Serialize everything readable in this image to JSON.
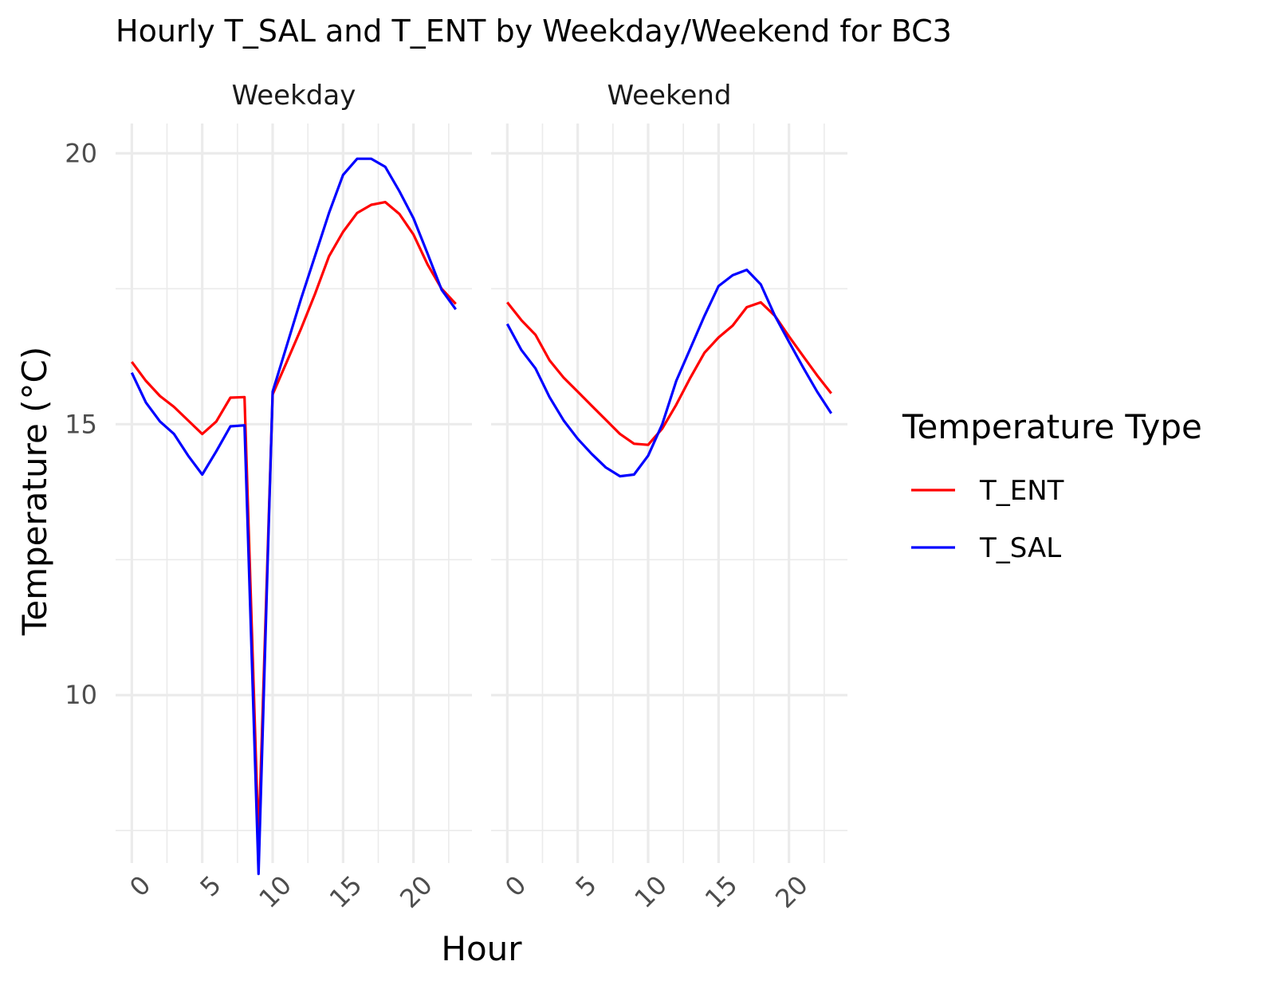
{
  "chart_data": {
    "type": "line",
    "title": "Hourly T_SAL and T_ENT by Weekday/Weekend for BC3",
    "xlabel": "Hour",
    "ylabel": "Temperature (°C)",
    "x_ticks": [
      0,
      5,
      10,
      15,
      20
    ],
    "y_ticks": [
      10,
      15,
      20
    ],
    "xlim": [
      -1.15,
      24.15
    ],
    "ylim": [
      6.9,
      20.55
    ],
    "grid": true,
    "legend": {
      "title": "Temperature Type",
      "placement": "right",
      "entries": [
        {
          "label": "T_ENT",
          "color": "#ff0000"
        },
        {
          "label": "T_SAL",
          "color": "#0000ff"
        }
      ]
    },
    "facets": [
      {
        "label": "Weekday",
        "x": [
          0,
          1,
          2,
          3,
          4,
          5,
          6,
          7,
          8,
          9,
          10,
          11,
          12,
          13,
          14,
          15,
          16,
          17,
          18,
          19,
          20,
          21,
          22,
          23
        ],
        "series": [
          {
            "name": "T_ENT",
            "color": "#ff0000",
            "values": [
              16.15,
              15.8,
              15.52,
              15.32,
              15.07,
              14.82,
              15.05,
              15.49,
              15.5,
              7.3,
              15.55,
              16.15,
              16.75,
              17.4,
              18.1,
              18.55,
              18.9,
              19.05,
              19.1,
              18.88,
              18.5,
              17.95,
              17.5,
              17.22
            ]
          },
          {
            "name": "T_SAL",
            "color": "#0000ff",
            "values": [
              15.95,
              15.4,
              15.05,
              14.82,
              14.42,
              14.07,
              14.5,
              14.96,
              14.98,
              6.7,
              15.6,
              16.45,
              17.3,
              18.1,
              18.9,
              19.6,
              19.9,
              19.9,
              19.75,
              19.3,
              18.8,
              18.15,
              17.48,
              17.12
            ]
          }
        ]
      },
      {
        "label": "Weekend",
        "x": [
          0,
          1,
          2,
          3,
          4,
          5,
          6,
          7,
          8,
          9,
          10,
          11,
          12,
          13,
          14,
          15,
          16,
          17,
          18,
          19,
          20,
          21,
          22,
          23
        ],
        "series": [
          {
            "name": "T_ENT",
            "color": "#ff0000",
            "values": [
              17.25,
              16.92,
              16.65,
              16.18,
              15.86,
              15.6,
              15.34,
              15.08,
              14.82,
              14.64,
              14.62,
              14.92,
              15.36,
              15.86,
              16.32,
              16.6,
              16.82,
              17.16,
              17.25,
              17.0,
              16.62,
              16.26,
              15.9,
              15.57
            ]
          },
          {
            "name": "T_SAL",
            "color": "#0000ff",
            "values": [
              16.85,
              16.37,
              16.03,
              15.5,
              15.07,
              14.73,
              14.45,
              14.2,
              14.04,
              14.07,
              14.42,
              15.0,
              15.8,
              16.4,
              17.0,
              17.55,
              17.75,
              17.85,
              17.58,
              17.0,
              16.52,
              16.05,
              15.6,
              15.2
            ]
          }
        ]
      }
    ]
  }
}
